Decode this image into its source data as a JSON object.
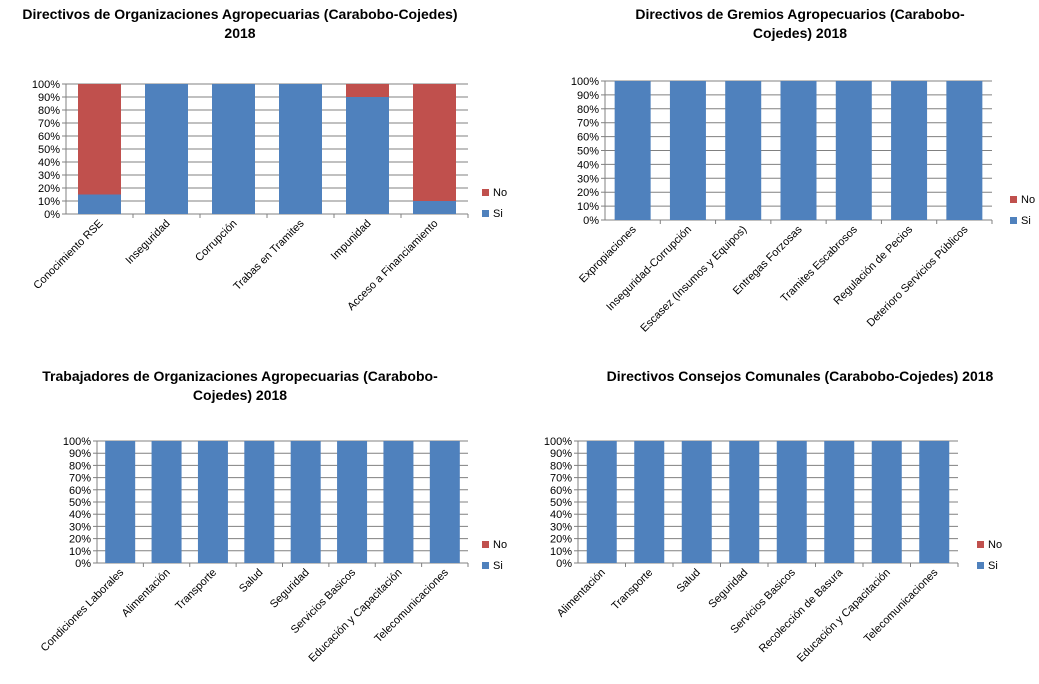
{
  "colors": {
    "si": "#4F81BD",
    "no": "#C0504D",
    "grid": "#808080",
    "axis": "#808080"
  },
  "chart_data": [
    {
      "type": "bar",
      "stacked": "percent",
      "title": "Directivos de Organizaciones Agropecuarias (Carabobo-Cojedes) 2018",
      "categories": [
        "Conocimiento RSE",
        "Inseguridad",
        "Corrupción",
        "Trabas en Tramites",
        "Impunidad",
        "Acceso a Financiamiento"
      ],
      "series": [
        {
          "name": "Si",
          "values": [
            15,
            100,
            100,
            100,
            90,
            10
          ]
        },
        {
          "name": "No",
          "values": [
            85,
            0,
            0,
            0,
            10,
            90
          ]
        }
      ],
      "yticks": [
        "0%",
        "10%",
        "20%",
        "30%",
        "40%",
        "50%",
        "60%",
        "70%",
        "80%",
        "90%",
        "100%"
      ],
      "ylim": [
        0,
        100
      ],
      "legend": "right",
      "grid": true
    },
    {
      "type": "bar",
      "stacked": "percent",
      "title": "Directivos de Gremios Agropecuarios (Carabobo-Cojedes) 2018",
      "categories": [
        "Expropiaciones",
        "Inseguridad-Corrupción",
        "Escasez (Insumos y Equipos)",
        "Entregas Forzosas",
        "Tramites Escabrosos",
        "Regulación de Pecios",
        "Deterioro Servicios Públicos"
      ],
      "series": [
        {
          "name": "Si",
          "values": [
            100,
            100,
            100,
            100,
            100,
            100,
            100
          ]
        },
        {
          "name": "No",
          "values": [
            0,
            0,
            0,
            0,
            0,
            0,
            0
          ]
        }
      ],
      "yticks": [
        "0%",
        "10%",
        "20%",
        "30%",
        "40%",
        "50%",
        "60%",
        "70%",
        "80%",
        "90%",
        "100%"
      ],
      "ylim": [
        0,
        100
      ],
      "legend": "right",
      "grid": true
    },
    {
      "type": "bar",
      "stacked": "percent",
      "title": "Trabajadores de Organizaciones Agropecuarias (Carabobo-Cojedes) 2018",
      "categories": [
        "Condiciones Laborales",
        "Alimentación",
        "Transporte",
        "Salud",
        "Seguridad",
        "Servicios Basicos",
        "Educación y Capacitación",
        "Telecomunicaciones"
      ],
      "series": [
        {
          "name": "Si",
          "values": [
            100,
            100,
            100,
            100,
            100,
            100,
            100,
            100
          ]
        },
        {
          "name": "No",
          "values": [
            0,
            0,
            0,
            0,
            0,
            0,
            0,
            0
          ]
        }
      ],
      "yticks": [
        "0%",
        "10%",
        "20%",
        "30%",
        "40%",
        "50%",
        "60%",
        "70%",
        "80%",
        "90%",
        "100%"
      ],
      "ylim": [
        0,
        100
      ],
      "legend": "right",
      "grid": true
    },
    {
      "type": "bar",
      "stacked": "percent",
      "title": "Directivos Consejos Comunales (Carabobo-Cojedes) 2018",
      "categories": [
        "Alimentación",
        "Transporte",
        "Salud",
        "Seguridad",
        "Servicios Basicos",
        "Recolección de Basura",
        "Educación y Capacitación",
        "Telecomunicaciones"
      ],
      "series": [
        {
          "name": "Si",
          "values": [
            100,
            100,
            100,
            100,
            100,
            100,
            100,
            100
          ]
        },
        {
          "name": "No",
          "values": [
            0,
            0,
            0,
            0,
            0,
            0,
            0,
            0
          ]
        }
      ],
      "yticks": [
        "0%",
        "10%",
        "20%",
        "30%",
        "40%",
        "50%",
        "60%",
        "70%",
        "80%",
        "90%",
        "100%"
      ],
      "ylim": [
        0,
        100
      ],
      "legend": "right",
      "grid": true
    }
  ]
}
